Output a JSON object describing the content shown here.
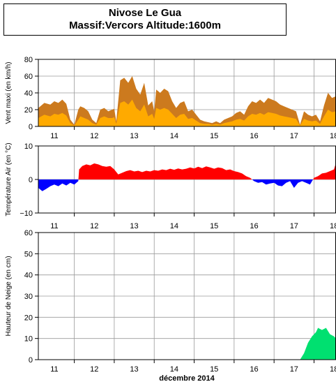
{
  "header": {
    "title_line1": "Nivose Le Gua",
    "title_line2": "Massif:Vercors Altitude:1600m"
  },
  "colors": {
    "wind_max": "#cc7a1e",
    "wind_mean": "#ffaa00",
    "temp_pos": "#ff0000",
    "temp_neg": "#0000ff",
    "snow": "#00e070",
    "grid": "#9a9a9a"
  },
  "chart_data": [
    {
      "type": "area",
      "ylabel": "Vent maxi (en km/h)",
      "ylim": [
        0,
        80
      ],
      "yticks": [
        "0",
        "20",
        "40",
        "60",
        "80"
      ],
      "x_day_labels": [
        "11",
        "12",
        "13",
        "14",
        "15",
        "16",
        "17",
        "18"
      ],
      "x_range_days": [
        10.6,
        18.05
      ],
      "series": [
        {
          "key": "max",
          "x": [
            10.6,
            10.75,
            10.9,
            11.0,
            11.1,
            11.2,
            11.3,
            11.4,
            11.5,
            11.6,
            11.65,
            11.75,
            11.85,
            11.95,
            12.05,
            12.15,
            12.25,
            12.35,
            12.45,
            12.5,
            12.55,
            12.65,
            12.75,
            12.85,
            12.95,
            13.05,
            13.15,
            13.25,
            13.35,
            13.45,
            13.5,
            13.55,
            13.65,
            13.75,
            13.85,
            13.95,
            14.05,
            14.15,
            14.25,
            14.35,
            14.45,
            14.55,
            14.65,
            14.75,
            14.85,
            14.95,
            15.05,
            15.15,
            15.25,
            15.35,
            15.45,
            15.55,
            15.65,
            15.75,
            15.85,
            15.95,
            16.05,
            16.15,
            16.25,
            16.35,
            16.45,
            16.55,
            16.65,
            16.75,
            16.85,
            16.95,
            17.05,
            17.15,
            17.25,
            17.35,
            17.45,
            17.55,
            17.65,
            17.75,
            17.85,
            17.95,
            18.05
          ],
          "values": [
            22,
            28,
            26,
            30,
            28,
            32,
            27,
            8,
            2,
            20,
            24,
            22,
            18,
            8,
            4,
            20,
            22,
            18,
            20,
            21,
            6,
            55,
            58,
            52,
            60,
            45,
            38,
            52,
            25,
            30,
            18,
            44,
            40,
            45,
            42,
            30,
            22,
            28,
            30,
            18,
            20,
            14,
            8,
            6,
            5,
            4,
            6,
            4,
            8,
            10,
            12,
            16,
            18,
            14,
            24,
            30,
            28,
            32,
            28,
            34,
            32,
            30,
            26,
            24,
            22,
            20,
            18,
            2,
            18,
            14,
            12,
            14,
            6,
            25,
            40,
            34,
            36
          ]
        },
        {
          "key": "mean",
          "x": [
            10.6,
            10.75,
            10.9,
            11.0,
            11.1,
            11.2,
            11.3,
            11.4,
            11.5,
            11.6,
            11.65,
            11.75,
            11.85,
            11.95,
            12.05,
            12.15,
            12.25,
            12.35,
            12.45,
            12.5,
            12.55,
            12.65,
            12.75,
            12.85,
            12.95,
            13.05,
            13.15,
            13.25,
            13.35,
            13.45,
            13.5,
            13.55,
            13.65,
            13.75,
            13.85,
            13.95,
            14.05,
            14.15,
            14.25,
            14.35,
            14.45,
            14.55,
            14.65,
            14.75,
            14.85,
            14.95,
            15.05,
            15.15,
            15.25,
            15.35,
            15.45,
            15.55,
            15.65,
            15.75,
            15.85,
            15.95,
            16.05,
            16.15,
            16.25,
            16.35,
            16.45,
            16.55,
            16.65,
            16.75,
            16.85,
            16.95,
            17.05,
            17.15,
            17.25,
            17.35,
            17.45,
            17.55,
            17.65,
            17.75,
            17.85,
            17.95,
            18.05
          ],
          "values": [
            10,
            14,
            12,
            15,
            14,
            16,
            13,
            4,
            1,
            8,
            12,
            10,
            8,
            4,
            2,
            10,
            12,
            10,
            10,
            11,
            3,
            28,
            30,
            26,
            32,
            22,
            18,
            26,
            12,
            15,
            9,
            22,
            20,
            22,
            20,
            15,
            10,
            14,
            15,
            9,
            10,
            7,
            4,
            3,
            3,
            2,
            3,
            2,
            4,
            5,
            6,
            8,
            9,
            7,
            12,
            15,
            14,
            16,
            14,
            17,
            16,
            15,
            13,
            12,
            11,
            10,
            9,
            1,
            9,
            7,
            6,
            7,
            3,
            12,
            20,
            17,
            18
          ]
        }
      ]
    },
    {
      "type": "area",
      "ylabel": "Température Air (en °C)",
      "ylim": [
        -10,
        10
      ],
      "yticks": [
        "-10",
        "0",
        "10"
      ],
      "x_day_labels": [
        "11",
        "12",
        "13",
        "14",
        "15",
        "16",
        "17",
        "18"
      ],
      "x_range_days": [
        10.6,
        18.05
      ],
      "series": [
        {
          "key": "temperature",
          "x": [
            10.6,
            10.7,
            10.8,
            10.9,
            11.0,
            11.1,
            11.2,
            11.3,
            11.4,
            11.5,
            11.6,
            11.62,
            11.7,
            11.8,
            11.9,
            12.0,
            12.1,
            12.2,
            12.3,
            12.4,
            12.5,
            12.6,
            12.7,
            12.8,
            12.9,
            13.0,
            13.1,
            13.2,
            13.3,
            13.4,
            13.5,
            13.6,
            13.7,
            13.8,
            13.9,
            14.0,
            14.1,
            14.2,
            14.3,
            14.4,
            14.5,
            14.6,
            14.7,
            14.8,
            14.9,
            15.0,
            15.1,
            15.2,
            15.3,
            15.4,
            15.5,
            15.6,
            15.7,
            15.8,
            15.9,
            16.0,
            16.1,
            16.2,
            16.3,
            16.4,
            16.5,
            16.6,
            16.7,
            16.8,
            16.9,
            17.0,
            17.1,
            17.2,
            17.3,
            17.4,
            17.5,
            17.6,
            17.7,
            17.8,
            17.9,
            18.0,
            18.05
          ],
          "values": [
            -2.5,
            -3.5,
            -2.8,
            -2.0,
            -1.5,
            -2.0,
            -1.2,
            -1.8,
            -1.0,
            -1.5,
            -0.5,
            3.0,
            4.0,
            4.5,
            4.2,
            4.8,
            4.5,
            4.0,
            3.8,
            4.0,
            3.0,
            1.5,
            2.0,
            2.5,
            2.8,
            2.4,
            2.6,
            2.2,
            2.6,
            2.4,
            2.8,
            2.6,
            3.0,
            2.8,
            3.2,
            2.9,
            3.3,
            3.0,
            3.2,
            3.6,
            3.3,
            3.8,
            3.4,
            3.9,
            3.6,
            3.2,
            3.6,
            3.4,
            2.8,
            3.0,
            2.5,
            2.2,
            1.8,
            1.0,
            0.5,
            -0.5,
            -1.0,
            -0.8,
            -1.5,
            -1.2,
            -1.0,
            -1.8,
            -2.0,
            -1.0,
            -0.5,
            -2.5,
            -1.0,
            -0.5,
            -1.0,
            -1.5,
            0.5,
            1.0,
            1.8,
            2.0,
            2.5,
            3.0,
            5.0
          ]
        }
      ]
    },
    {
      "type": "area",
      "ylabel": "Hauteur de Neige (en cm)",
      "xlabel": "décembre 2014",
      "ylim": [
        0,
        60
      ],
      "yticks": [
        "0",
        "10",
        "20",
        "30",
        "40",
        "50",
        "60"
      ],
      "x_day_labels": [
        "11",
        "12",
        "13",
        "14",
        "15",
        "16",
        "17",
        "18"
      ],
      "x_range_days": [
        10.6,
        18.05
      ],
      "series": [
        {
          "key": "snow_depth",
          "x": [
            10.6,
            17.15,
            17.25,
            17.35,
            17.45,
            17.55,
            17.6,
            17.7,
            17.8,
            17.9,
            18.0,
            18.05
          ],
          "values": [
            0,
            0,
            3,
            8,
            11,
            13,
            15,
            14,
            15,
            12,
            11,
            10
          ]
        }
      ]
    }
  ]
}
